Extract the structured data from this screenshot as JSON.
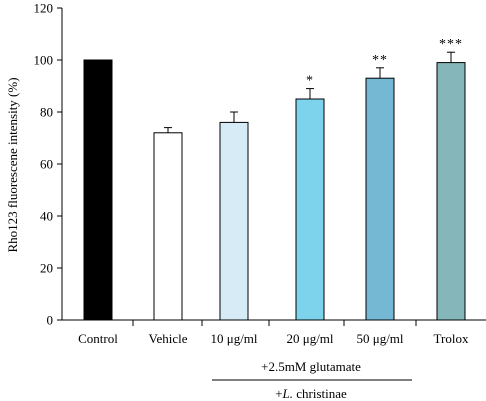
{
  "chart_data": {
    "type": "bar",
    "ylabel": "Rho123 fluorescene intensity (%)",
    "ylim": [
      0,
      120
    ],
    "yticks": [
      0,
      20,
      40,
      60,
      80,
      100,
      120
    ],
    "categories": [
      "Control",
      "Vehicle",
      "10 μg/ml",
      "20 μg/ml",
      "50 μg/ml",
      "Trolox"
    ],
    "values": [
      100,
      72,
      76,
      85,
      93,
      99
    ],
    "errors": [
      0,
      2,
      4,
      4,
      4,
      4
    ],
    "significance": [
      "",
      "",
      "",
      "*",
      "**",
      "***"
    ],
    "colors": [
      "#000000",
      "#ffffff",
      "#d6ebf5",
      "#7dd3ec",
      "#74b8d4",
      "#85b6b9"
    ],
    "group_labels": {
      "glutamate": "+2.5mM glutamate",
      "christinae_prefix": "+",
      "christinae_italic": "L.",
      "christinae_suffix": " christinae"
    }
  }
}
